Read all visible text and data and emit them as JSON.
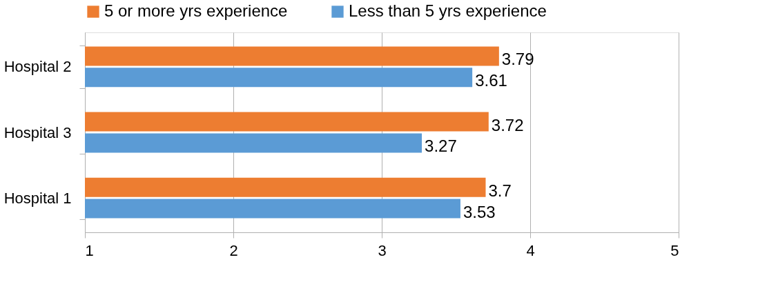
{
  "chart_data": {
    "type": "bar",
    "orientation": "horizontal",
    "categories": [
      "Hospital 2",
      "Hospital 3",
      "Hospital 1"
    ],
    "series": [
      {
        "name": "5 or more yrs experience",
        "color": "#ed7d31",
        "values": [
          3.79,
          3.72,
          3.7
        ]
      },
      {
        "name": "Less than 5 yrs experience",
        "color": "#5b9bd5",
        "values": [
          3.61,
          3.27,
          3.53
        ]
      }
    ],
    "xlim": [
      1,
      5
    ],
    "xticks": [
      1,
      2,
      3,
      4,
      5
    ],
    "grid": "x",
    "legend": "top",
    "data_labels": true
  }
}
